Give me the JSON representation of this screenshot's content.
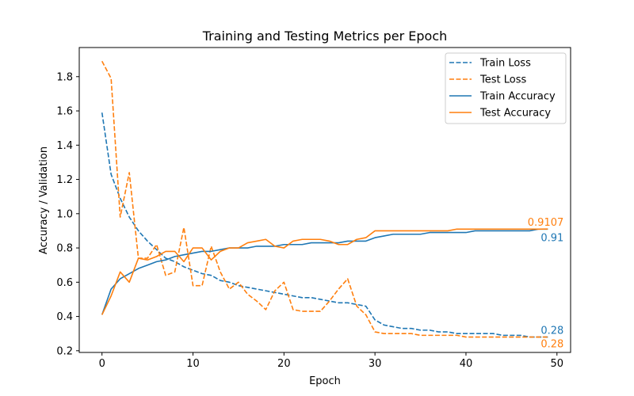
{
  "chart_data": {
    "type": "line",
    "title": "Training and Testing Metrics per Epoch",
    "xlabel": "Epoch",
    "ylabel": "Accuracy / Validation",
    "xlim": [
      -2.5,
      51.5
    ],
    "ylim": [
      0.19,
      1.97
    ],
    "xticks": [
      0,
      10,
      20,
      30,
      40,
      50
    ],
    "yticks": [
      0.2,
      0.4,
      0.6,
      0.8,
      1.0,
      1.2,
      1.4,
      1.6,
      1.8
    ],
    "ytick_labels": [
      "0.2",
      "0.4",
      "0.6",
      "0.8",
      "1.0",
      "1.2",
      "1.4",
      "1.6",
      "1.8"
    ],
    "grid": false,
    "legend_position": "top-right",
    "x": [
      0,
      1,
      2,
      3,
      4,
      5,
      6,
      7,
      8,
      9,
      10,
      11,
      12,
      13,
      14,
      15,
      16,
      17,
      18,
      19,
      20,
      21,
      22,
      23,
      24,
      25,
      26,
      27,
      28,
      29,
      30,
      31,
      32,
      33,
      34,
      35,
      36,
      37,
      38,
      39,
      40,
      41,
      42,
      43,
      44,
      45,
      46,
      47,
      48,
      49
    ],
    "series": [
      {
        "name": "Train Loss",
        "color": "#1f77b4",
        "style": "dashed",
        "values": [
          1.59,
          1.23,
          1.09,
          0.98,
          0.9,
          0.84,
          0.79,
          0.74,
          0.72,
          0.69,
          0.67,
          0.65,
          0.64,
          0.61,
          0.6,
          0.58,
          0.57,
          0.56,
          0.55,
          0.54,
          0.53,
          0.52,
          0.51,
          0.51,
          0.5,
          0.49,
          0.48,
          0.48,
          0.47,
          0.46,
          0.38,
          0.35,
          0.34,
          0.33,
          0.33,
          0.32,
          0.32,
          0.31,
          0.31,
          0.3,
          0.3,
          0.3,
          0.3,
          0.3,
          0.29,
          0.29,
          0.29,
          0.28,
          0.28,
          0.28
        ]
      },
      {
        "name": "Test Loss",
        "color": "#ff7f0e",
        "style": "dashed",
        "values": [
          1.89,
          1.79,
          0.98,
          1.24,
          0.74,
          0.74,
          0.82,
          0.64,
          0.66,
          0.92,
          0.58,
          0.58,
          0.81,
          0.66,
          0.56,
          0.6,
          0.53,
          0.49,
          0.44,
          0.55,
          0.6,
          0.44,
          0.43,
          0.43,
          0.43,
          0.49,
          0.56,
          0.62,
          0.46,
          0.41,
          0.31,
          0.3,
          0.3,
          0.3,
          0.3,
          0.29,
          0.29,
          0.29,
          0.29,
          0.29,
          0.28,
          0.28,
          0.28,
          0.28,
          0.28,
          0.28,
          0.28,
          0.28,
          0.28,
          0.28
        ]
      },
      {
        "name": "Train Accuracy",
        "color": "#1f77b4",
        "style": "solid",
        "values": [
          0.41,
          0.56,
          0.62,
          0.65,
          0.68,
          0.7,
          0.72,
          0.73,
          0.75,
          0.76,
          0.77,
          0.78,
          0.78,
          0.79,
          0.8,
          0.8,
          0.8,
          0.81,
          0.81,
          0.81,
          0.82,
          0.82,
          0.82,
          0.83,
          0.83,
          0.83,
          0.83,
          0.84,
          0.84,
          0.84,
          0.86,
          0.87,
          0.88,
          0.88,
          0.88,
          0.88,
          0.89,
          0.89,
          0.89,
          0.89,
          0.89,
          0.9,
          0.9,
          0.9,
          0.9,
          0.9,
          0.9,
          0.9,
          0.91,
          0.91
        ]
      },
      {
        "name": "Test Accuracy",
        "color": "#ff7f0e",
        "style": "solid",
        "values": [
          0.41,
          0.52,
          0.66,
          0.6,
          0.74,
          0.73,
          0.75,
          0.78,
          0.78,
          0.72,
          0.8,
          0.8,
          0.73,
          0.78,
          0.8,
          0.8,
          0.83,
          0.84,
          0.85,
          0.81,
          0.8,
          0.84,
          0.85,
          0.85,
          0.85,
          0.84,
          0.82,
          0.82,
          0.85,
          0.86,
          0.9,
          0.9,
          0.9,
          0.9,
          0.9,
          0.9,
          0.9,
          0.9,
          0.9,
          0.91,
          0.91,
          0.91,
          0.91,
          0.91,
          0.91,
          0.91,
          0.91,
          0.91,
          0.91,
          0.9107
        ]
      }
    ],
    "annotations": [
      {
        "text": "0.9107",
        "x": 49,
        "y": 0.9107,
        "color": "#ff7f0e",
        "placement": "above"
      },
      {
        "text": "0.91",
        "x": 49,
        "y": 0.9,
        "color": "#1f77b4",
        "placement": "below"
      },
      {
        "text": "0.28",
        "x": 49,
        "y": 0.28,
        "color": "#1f77b4",
        "placement": "above"
      },
      {
        "text": "0.28",
        "x": 49,
        "y": 0.28,
        "color": "#ff7f0e",
        "placement": "below"
      }
    ]
  }
}
